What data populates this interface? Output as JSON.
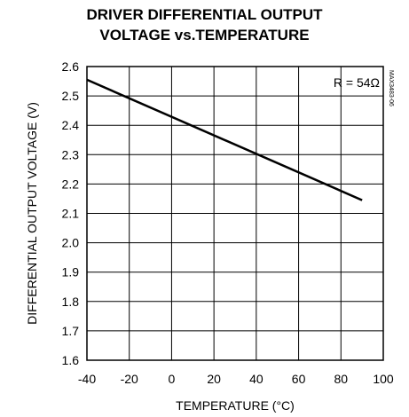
{
  "chart_data": {
    "type": "line",
    "title_line1": "DRIVER DIFFERENTIAL OUTPUT",
    "title_line2": "VOLTAGE vs.TEMPERATURE",
    "xlabel": "TEMPERATURE (°C)",
    "ylabel": "DIFFERENTIAL OUTPUT VOLTAGE (V)",
    "xlim": [
      -40,
      100
    ],
    "ylim": [
      1.6,
      2.6
    ],
    "x_ticks": [
      "-40",
      "-20",
      "0",
      "20",
      "40",
      "60",
      "80",
      "100"
    ],
    "y_ticks": [
      "2.6",
      "2.5",
      "2.4",
      "2.3",
      "2.2",
      "2.1",
      "2.0",
      "1.9",
      "1.8",
      "1.7",
      "1.6"
    ],
    "grid": true,
    "annotation": "R = 54Ω",
    "part_number": "MAX3483-06",
    "series": [
      {
        "x": [
          -40,
          90
        ],
        "y": [
          2.555,
          2.145
        ]
      }
    ]
  }
}
